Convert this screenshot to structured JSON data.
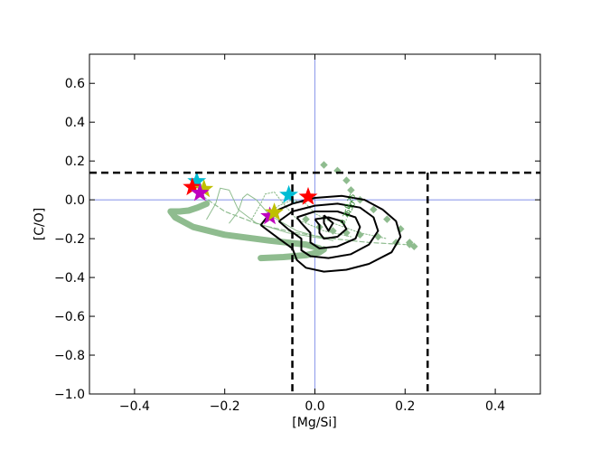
{
  "chart_data": {
    "type": "line",
    "title": "",
    "xlabel": "[Mg/Si]",
    "ylabel": "[C/O]",
    "xlim": [
      -0.5,
      0.5
    ],
    "ylim": [
      -1.0,
      0.75
    ],
    "xticks": [
      -0.4,
      -0.2,
      0.0,
      0.2,
      0.4
    ],
    "xtick_labels": [
      "−0.4",
      "−0.2",
      "0.0",
      "0.2",
      "0.4"
    ],
    "yticks": [
      -1.0,
      -0.8,
      -0.6,
      -0.4,
      -0.2,
      0.0,
      0.2,
      0.4,
      0.6
    ],
    "ytick_labels": [
      "−1.0",
      "−0.8",
      "−0.6",
      "−0.4",
      "−0.2",
      "0.0",
      "0.2",
      "0.4",
      "0.6"
    ],
    "grid": false,
    "colors": {
      "model": "#8fbc8f",
      "contour": "#000000",
      "reference": "#5b6ee1",
      "cut": "#000000",
      "contour_label": "#1a7a1a"
    },
    "reference_lines": {
      "x": 0.0,
      "y": 0.0
    },
    "cut_lines": {
      "y": 0.14,
      "x_left": -0.05,
      "x_right": 0.25
    },
    "contour_labels": [
      "0.25",
      "0.50",
      "0.75"
    ],
    "model_curves": [
      {
        "style": "thick",
        "points": [
          [
            -0.24,
            -0.02
          ],
          [
            -0.26,
            -0.04
          ],
          [
            -0.28,
            -0.055
          ],
          [
            -0.3,
            -0.06
          ],
          [
            -0.32,
            -0.06
          ],
          [
            -0.31,
            -0.09
          ],
          [
            -0.27,
            -0.14
          ],
          [
            -0.2,
            -0.18
          ],
          [
            -0.1,
            -0.21
          ],
          [
            -0.02,
            -0.23
          ],
          [
            0.01,
            -0.25
          ]
        ]
      },
      {
        "style": "thick",
        "points": [
          [
            -0.12,
            -0.3
          ],
          [
            -0.07,
            -0.295
          ],
          [
            -0.02,
            -0.285
          ],
          [
            0.01,
            -0.27
          ],
          [
            0.02,
            -0.255
          ]
        ]
      },
      {
        "style": "thin",
        "points": [
          [
            -0.24,
            -0.1
          ],
          [
            -0.22,
            -0.02
          ],
          [
            -0.21,
            0.06
          ],
          [
            -0.19,
            0.05
          ],
          [
            -0.17,
            -0.05
          ],
          [
            -0.13,
            -0.12
          ],
          [
            -0.06,
            -0.17
          ],
          [
            0.02,
            -0.2
          ]
        ]
      },
      {
        "style": "thin",
        "points": [
          [
            -0.19,
            -0.12
          ],
          [
            -0.17,
            -0.06
          ],
          [
            -0.16,
            0.01
          ],
          [
            -0.15,
            0.03
          ],
          [
            -0.13,
            0.0
          ],
          [
            -0.1,
            -0.08
          ],
          [
            -0.04,
            -0.16
          ],
          [
            0.04,
            -0.21
          ]
        ]
      },
      {
        "style": "dotted",
        "points": [
          [
            -0.14,
            -0.1
          ],
          [
            -0.12,
            -0.02
          ],
          [
            -0.11,
            0.03
          ],
          [
            -0.09,
            0.04
          ],
          [
            -0.07,
            -0.02
          ],
          [
            -0.04,
            -0.1
          ],
          [
            0.02,
            -0.16
          ],
          [
            0.08,
            -0.19
          ]
        ]
      },
      {
        "style": "dotted",
        "points": [
          [
            -0.11,
            -0.08
          ],
          [
            -0.08,
            -0.03
          ],
          [
            -0.05,
            0.0
          ],
          [
            -0.02,
            -0.02
          ],
          [
            0.0,
            -0.07
          ],
          [
            0.04,
            -0.12
          ],
          [
            0.1,
            -0.17
          ],
          [
            0.16,
            -0.2
          ]
        ]
      },
      {
        "style": "dashed",
        "points": [
          [
            -0.25,
            0.02
          ],
          [
            -0.2,
            -0.06
          ],
          [
            -0.12,
            -0.13
          ],
          [
            -0.04,
            -0.17
          ],
          [
            0.04,
            -0.2
          ],
          [
            0.12,
            -0.22
          ],
          [
            0.2,
            -0.23
          ]
        ]
      }
    ],
    "diamond_series": [
      {
        "points": [
          [
            0.02,
            0.18
          ],
          [
            0.05,
            0.15
          ],
          [
            0.07,
            0.1
          ],
          [
            0.08,
            0.05
          ],
          [
            0.1,
            0.0
          ],
          [
            0.13,
            -0.05
          ],
          [
            0.16,
            -0.1
          ],
          [
            0.19,
            -0.15
          ],
          [
            0.21,
            -0.22
          ],
          [
            0.22,
            -0.24
          ]
        ]
      },
      {
        "points": [
          [
            -0.02,
            -0.1
          ],
          [
            0.01,
            -0.14
          ],
          [
            0.04,
            -0.16
          ],
          [
            0.07,
            -0.17
          ],
          [
            0.1,
            -0.18
          ],
          [
            0.14,
            -0.19
          ],
          [
            0.18,
            -0.22
          ],
          [
            0.21,
            -0.23
          ]
        ]
      }
    ],
    "contours": [
      {
        "points": [
          [
            -0.12,
            -0.13
          ],
          [
            -0.1,
            -0.07
          ],
          [
            -0.05,
            -0.02
          ],
          [
            0.0,
            0.01
          ],
          [
            0.06,
            0.02
          ],
          [
            0.11,
            0.0
          ],
          [
            0.15,
            -0.05
          ],
          [
            0.18,
            -0.11
          ],
          [
            0.19,
            -0.19
          ],
          [
            0.17,
            -0.27
          ],
          [
            0.12,
            -0.33
          ],
          [
            0.07,
            -0.36
          ],
          [
            0.02,
            -0.37
          ],
          [
            -0.02,
            -0.35
          ],
          [
            -0.04,
            -0.31
          ],
          [
            -0.05,
            -0.25
          ],
          [
            -0.08,
            -0.2
          ],
          [
            -0.12,
            -0.13
          ]
        ]
      },
      {
        "points": [
          [
            -0.08,
            -0.11
          ],
          [
            -0.05,
            -0.06
          ],
          [
            0.0,
            -0.03
          ],
          [
            0.05,
            -0.02
          ],
          [
            0.1,
            -0.04
          ],
          [
            0.13,
            -0.09
          ],
          [
            0.14,
            -0.16
          ],
          [
            0.12,
            -0.23
          ],
          [
            0.08,
            -0.28
          ],
          [
            0.03,
            -0.3
          ],
          [
            -0.01,
            -0.29
          ],
          [
            -0.03,
            -0.26
          ],
          [
            -0.03,
            -0.2
          ],
          [
            -0.06,
            -0.15
          ],
          [
            -0.08,
            -0.11
          ]
        ]
      },
      {
        "points": [
          [
            -0.04,
            -0.09
          ],
          [
            0.0,
            -0.06
          ],
          [
            0.05,
            -0.06
          ],
          [
            0.09,
            -0.09
          ],
          [
            0.1,
            -0.14
          ],
          [
            0.09,
            -0.2
          ],
          [
            0.05,
            -0.24
          ],
          [
            0.01,
            -0.25
          ],
          [
            -0.01,
            -0.22
          ],
          [
            -0.01,
            -0.17
          ],
          [
            -0.03,
            -0.12
          ],
          [
            -0.04,
            -0.09
          ]
        ]
      },
      {
        "points": [
          [
            0.0,
            -0.1
          ],
          [
            0.03,
            -0.09
          ],
          [
            0.06,
            -0.11
          ],
          [
            0.07,
            -0.15
          ],
          [
            0.05,
            -0.19
          ],
          [
            0.02,
            -0.2
          ],
          [
            0.01,
            -0.17
          ],
          [
            0.01,
            -0.13
          ],
          [
            0.0,
            -0.1
          ]
        ]
      },
      {
        "points": [
          [
            0.02,
            -0.08
          ],
          [
            0.04,
            -0.12
          ],
          [
            0.03,
            -0.16
          ],
          [
            0.02,
            -0.12
          ],
          [
            0.02,
            -0.08
          ]
        ]
      }
    ],
    "stars": [
      {
        "color": "#00bcd4",
        "x": -0.262,
        "y": 0.095
      },
      {
        "color": "#ff0000",
        "x": -0.272,
        "y": 0.065
      },
      {
        "color": "#bfbf00",
        "x": -0.246,
        "y": 0.055
      },
      {
        "color": "#bf00bf",
        "x": -0.255,
        "y": 0.035
      },
      {
        "color": "#00bcd4",
        "x": -0.058,
        "y": 0.025
      },
      {
        "color": "#ff0000",
        "x": -0.015,
        "y": 0.015
      },
      {
        "color": "#bf00bf",
        "x": -0.1,
        "y": -0.085
      },
      {
        "color": "#bfbf00",
        "x": -0.09,
        "y": -0.065
      }
    ]
  }
}
